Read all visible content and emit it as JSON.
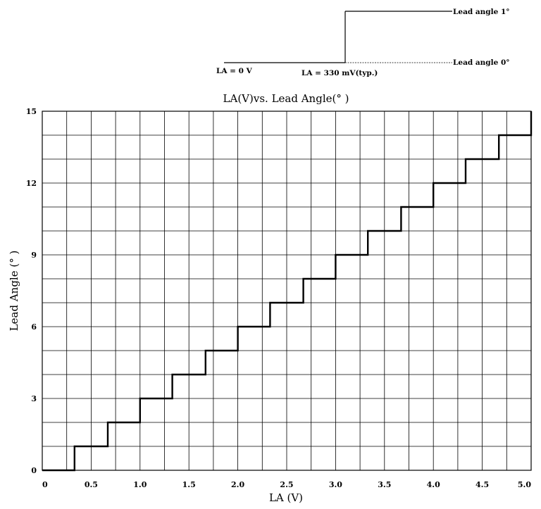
{
  "inset": {
    "label_zero": "LA = 0 V",
    "label_threshold": "LA = 330 mV(typ.)",
    "label_lead_1": "Lead angle 1°",
    "label_lead_0": "Lead angle 0°"
  },
  "chart_data": {
    "type": "line",
    "title": "LA(V)vs. Lead Angle(° )",
    "xlabel": "LA (V)",
    "ylabel": "Lead Angle (° )",
    "xlim": [
      0,
      5.0
    ],
    "ylim": [
      0,
      15
    ],
    "grid": true,
    "x_ticks": [
      "0",
      "0.5",
      "1.0",
      "1.5",
      "2.0",
      "2.5",
      "3.0",
      "3.5",
      "4.0",
      "4.5",
      "5.0"
    ],
    "y_ticks": [
      "0",
      "3",
      "6",
      "9",
      "12",
      "15"
    ],
    "series": [
      {
        "style": "step",
        "x": [
          0,
          0.33,
          0.33,
          0.67,
          0.67,
          1.0,
          1.0,
          1.33,
          1.33,
          1.67,
          1.67,
          2.0,
          2.0,
          2.33,
          2.33,
          2.67,
          2.67,
          3.0,
          3.0,
          3.33,
          3.33,
          3.67,
          3.67,
          4.0,
          4.0,
          4.33,
          4.33,
          4.67,
          4.67,
          5.0,
          5.0
        ],
        "y": [
          0,
          0,
          1,
          1,
          2,
          2,
          3,
          3,
          4,
          4,
          5,
          5,
          6,
          6,
          7,
          7,
          8,
          8,
          9,
          9,
          10,
          10,
          11,
          11,
          12,
          12,
          13,
          13,
          14,
          14,
          15
        ]
      }
    ]
  }
}
